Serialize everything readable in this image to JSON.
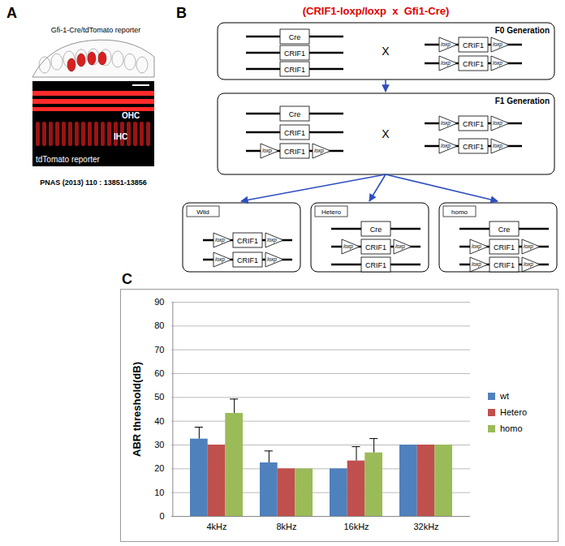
{
  "panel_a": {
    "letter": "A",
    "title": "Gfi-1-Cre/tdTomato reporter",
    "image_labels": [
      "OHC",
      "IHC",
      "tdTomato reporter"
    ],
    "citation": "PNAS (2013) 110 : 13851-13856"
  },
  "panel_b": {
    "letter": "B",
    "title": "(CRIF1-loxp/loxp  x  Gfi1-Cre)",
    "cross": "X",
    "loxp_label": "loxp",
    "generations": [
      {
        "label": "F0 Generation",
        "left": [
          {
            "gene": "Cre"
          },
          {
            "gene": "CRIF1"
          },
          {
            "gene": "CRIF1"
          }
        ],
        "right": [
          {
            "gene": "CRIF1",
            "loxp": true
          },
          {
            "gene": "CRIF1",
            "loxp": true
          }
        ]
      },
      {
        "label": "F1 Generation",
        "left": [
          {
            "gene": "Cre"
          },
          {
            "gene": "CRIF1"
          },
          {
            "gene": "CRIF1",
            "loxp": true
          }
        ],
        "right": [
          {
            "gene": "CRIF1",
            "loxp": true
          },
          {
            "gene": "CRIF1",
            "loxp": true
          }
        ]
      }
    ],
    "offspring": [
      {
        "label": "Wild",
        "chromosomes": [
          {
            "gene": "CRIF1",
            "loxp": true
          },
          {
            "gene": "CRIF1",
            "loxp": true
          }
        ]
      },
      {
        "label": "Hetero",
        "chromosomes": [
          {
            "gene": "Cre"
          },
          {
            "gene": "CRIF1",
            "loxp": true
          },
          {
            "gene": "CRIF1"
          }
        ]
      },
      {
        "label": "homo",
        "chromosomes": [
          {
            "gene": "Cre"
          },
          {
            "gene": "CRIF1",
            "loxp": true
          },
          {
            "gene": "CRIF1",
            "loxp": true
          }
        ]
      }
    ]
  },
  "panel_c": {
    "letter": "C"
  },
  "chart_data": {
    "type": "bar",
    "categories": [
      "4kHz",
      "8kHz",
      "16kHz",
      "32kHz"
    ],
    "series": [
      {
        "name": "wt",
        "color": "#4f81bd",
        "values": [
          32.5,
          22.5,
          20,
          30
        ],
        "errors": [
          5,
          5,
          0,
          0
        ]
      },
      {
        "name": "Hetero",
        "color": "#c0504d",
        "values": [
          30,
          20,
          23.3,
          30
        ],
        "errors": [
          0,
          0,
          6,
          0
        ]
      },
      {
        "name": "homo",
        "color": "#9bbb59",
        "values": [
          43.3,
          20,
          26.7,
          30
        ],
        "errors": [
          6,
          0,
          6,
          0
        ]
      }
    ],
    "ylabel": "ABR threshold(dB)",
    "ylim": [
      0,
      90
    ],
    "yticks": [
      0,
      10,
      20,
      30,
      40,
      50,
      60,
      70,
      80,
      90
    ],
    "grid": true,
    "legend": "right"
  }
}
